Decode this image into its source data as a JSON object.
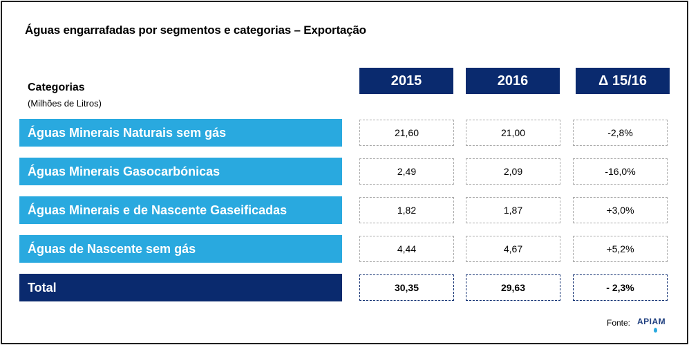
{
  "chart_data": {
    "type": "table",
    "title": "Águas engarrafadas por segmentos e categorias – Exportação",
    "row_header": "Categorias",
    "row_header_sub": "(Milhões de Litros)",
    "columns": [
      "2015",
      "2016",
      "Δ 15/16"
    ],
    "rows": [
      {
        "label": "Águas Minerais Naturais sem gás",
        "values": [
          "21,60",
          "21,00",
          "-2,8%"
        ]
      },
      {
        "label": "Águas Minerais Gasocarbónicas",
        "values": [
          "2,49",
          "2,09",
          "-16,0%"
        ]
      },
      {
        "label": "Águas Minerais e de Nascente Gaseificadas",
        "values": [
          "1,82",
          "1,87",
          "+3,0%"
        ]
      },
      {
        "label": "Águas de Nascente sem gás",
        "values": [
          "4,44",
          "4,67",
          "+5,2%"
        ]
      }
    ],
    "total": {
      "label": "Total",
      "values": [
        "30,35",
        "29,63",
        "- 2,3%"
      ]
    }
  },
  "source": {
    "label": "Fonte:",
    "logo_text": "APIAM"
  },
  "colors": {
    "dark_blue": "#0a2a6e",
    "light_blue": "#29a9df"
  }
}
